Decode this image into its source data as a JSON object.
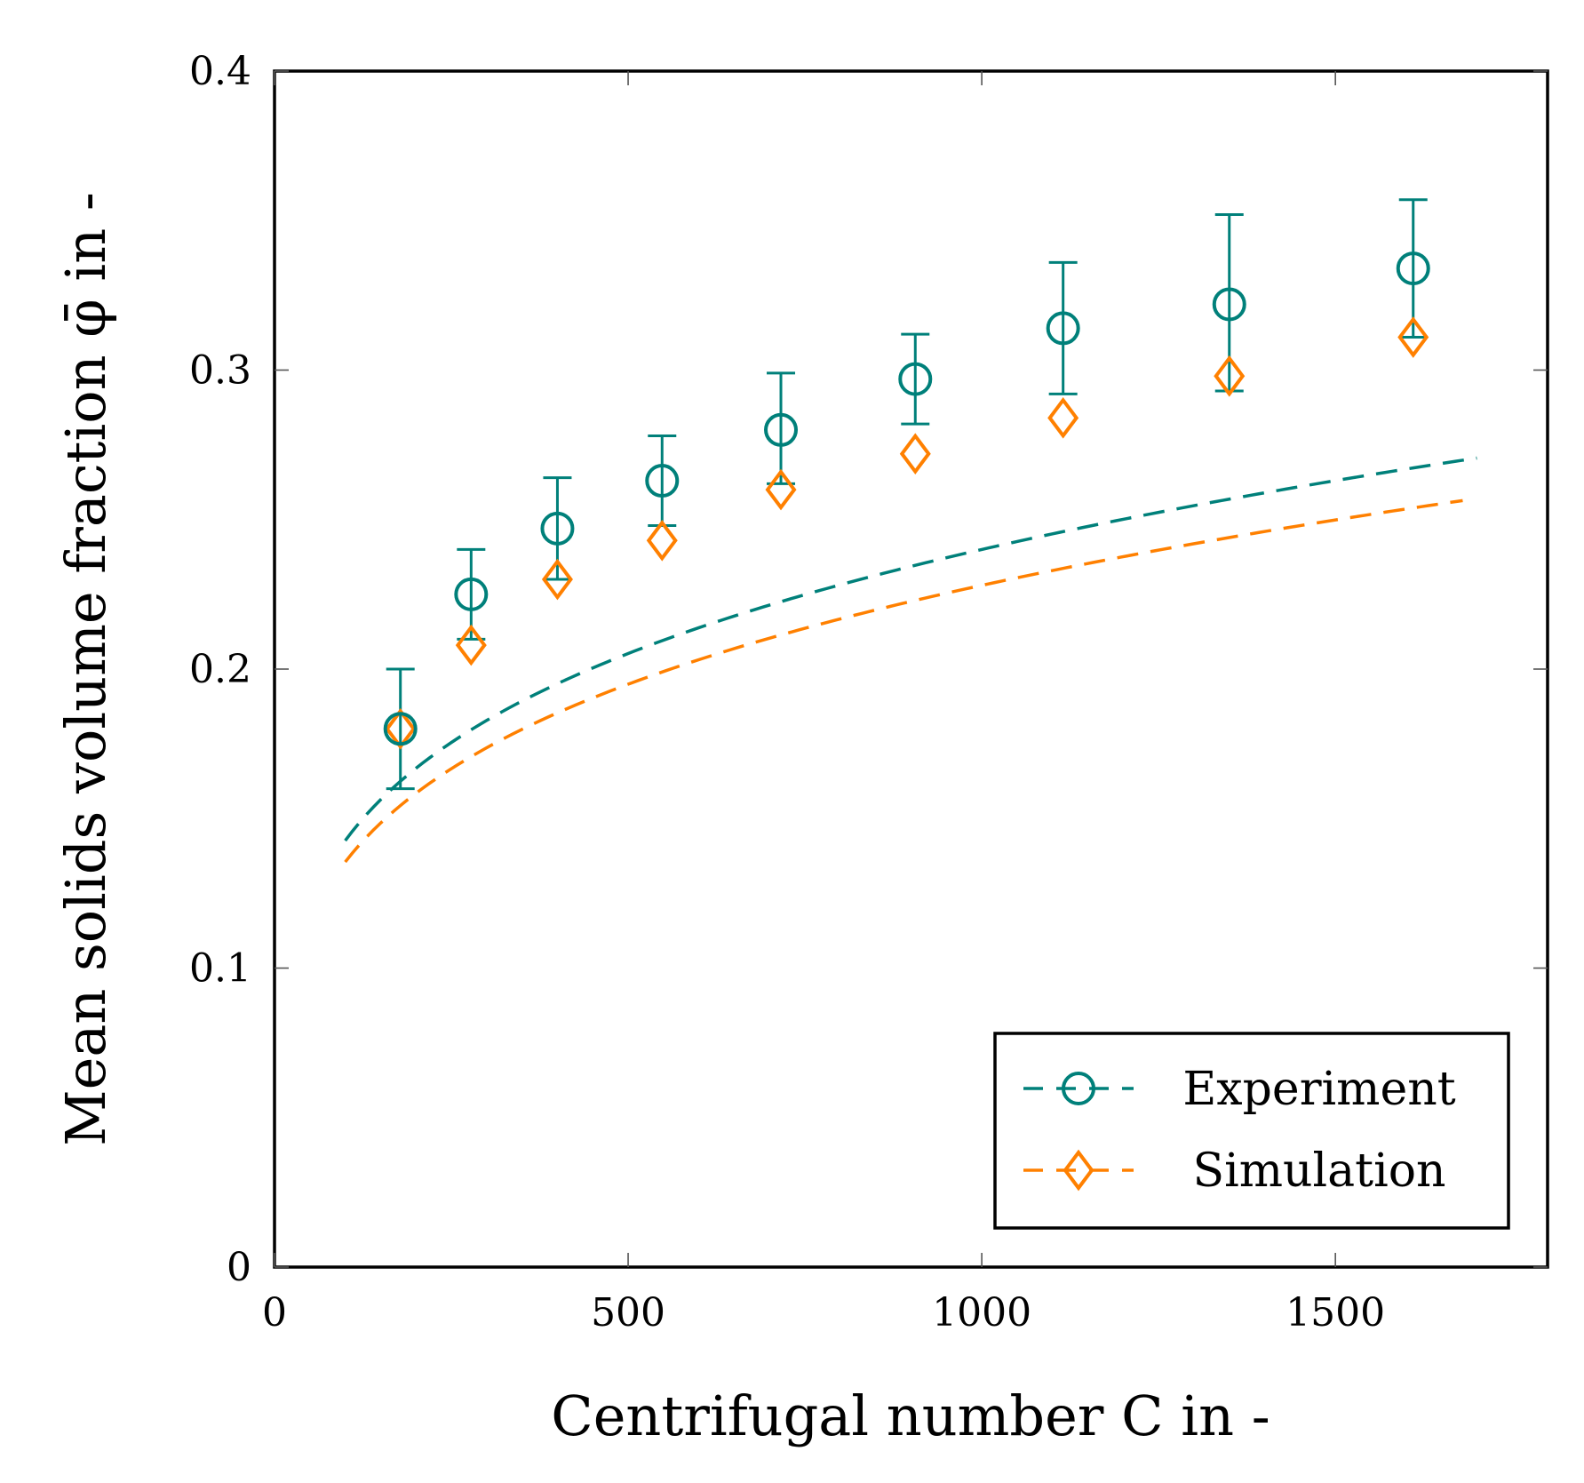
{
  "chart_data": {
    "type": "scatter",
    "title": "",
    "xlabel": "Centrifugal number C in -",
    "ylabel": "Mean solids volume fraction φ̄ in -",
    "xlim": [
      0,
      1800
    ],
    "ylim": [
      0,
      0.4
    ],
    "xticks": [
      0,
      500,
      1000,
      1500
    ],
    "yticks": [
      0,
      0.1,
      0.2,
      0.3,
      0.4
    ],
    "xtick_labels": [
      "0",
      "500",
      "1000",
      "1500"
    ],
    "ytick_labels": [
      "0",
      "0.1",
      "0.2",
      "0.3",
      "0.4"
    ],
    "grid": false,
    "legend_position": "bottom-right",
    "series": [
      {
        "name": "Experiment",
        "marker": "circle",
        "color": "#00807a",
        "x": [
          178,
          278,
          400,
          548,
          716,
          906,
          1115,
          1350,
          1610
        ],
        "y": [
          0.18,
          0.225,
          0.247,
          0.263,
          0.28,
          0.297,
          0.314,
          0.322,
          0.334
        ],
        "err_low": [
          0.02,
          0.015,
          0.017,
          0.015,
          0.018,
          0.015,
          0.022,
          0.029,
          0.023
        ],
        "err_high": [
          0.02,
          0.015,
          0.017,
          0.015,
          0.019,
          0.015,
          0.022,
          0.03,
          0.023
        ],
        "fit": {
          "style": "dashed",
          "x_range": [
            100,
            1700
          ],
          "a": 0.0565,
          "b": 0.24
        }
      },
      {
        "name": "Simulation",
        "marker": "diamond",
        "color": "#ff8000",
        "x": [
          178,
          278,
          400,
          548,
          716,
          906,
          1115,
          1350,
          1610
        ],
        "y": [
          0.18,
          0.208,
          0.23,
          0.243,
          0.26,
          0.272,
          0.284,
          0.298,
          0.311
        ],
        "fit": {
          "style": "dashed",
          "x_range": [
            100,
            1680
          ],
          "a": 0.0565,
          "b": 0.228
        }
      }
    ]
  }
}
